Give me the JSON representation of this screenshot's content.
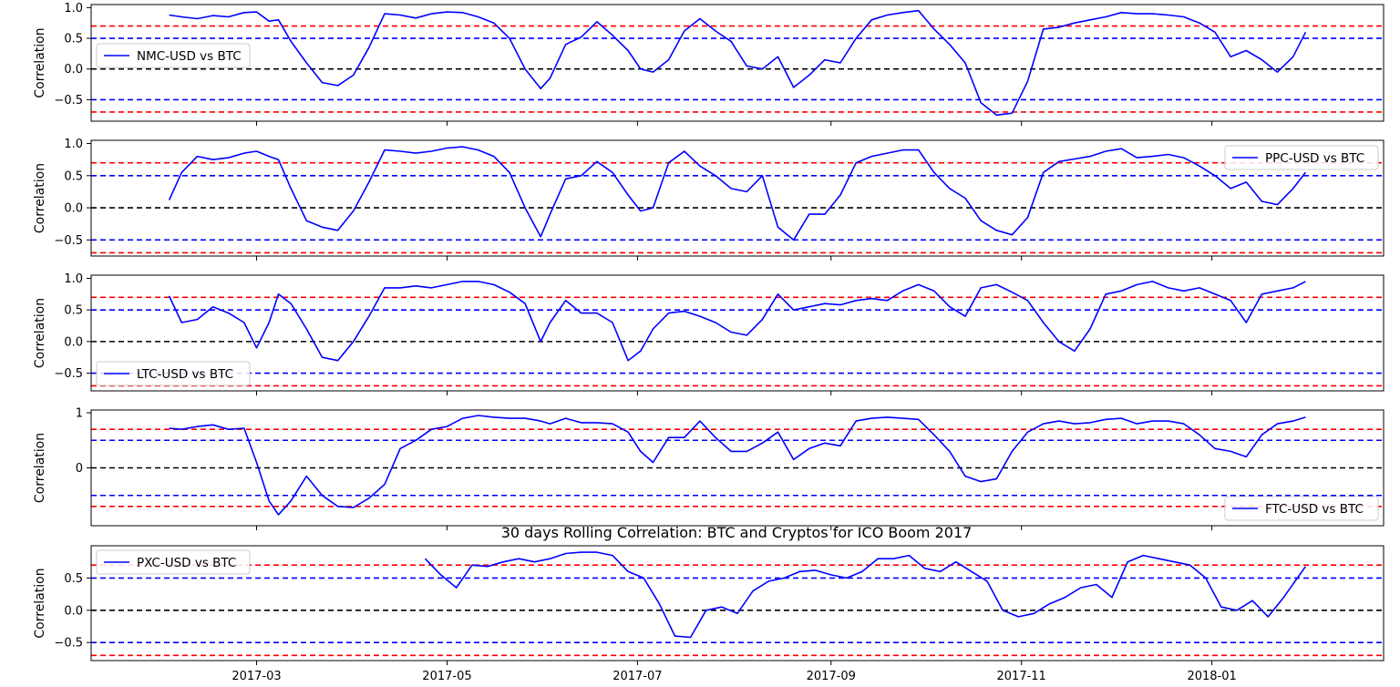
{
  "figure_title": "30 days Rolling Correlation: BTC and Cryptos for ICO Boom 2017",
  "ylabel": "Correlation",
  "x_ticks": [
    "2017-03",
    "2017-05",
    "2017-07",
    "2017-09",
    "2017-11",
    "2018-01"
  ],
  "colors": {
    "series": "#0000ff",
    "upper_strong": "#ff0000",
    "moderate": "#0000ff",
    "zero": "#000000"
  },
  "chart_data": [
    {
      "type": "line",
      "series_name": "NMC-USD vs BTC",
      "legend_position": "center-left",
      "ylim": [
        -0.85,
        1.05
      ],
      "y_ticks": [
        -0.5,
        0.0,
        0.5,
        1.0
      ],
      "y_tick_labels": [
        "−0.5",
        "0.0",
        "0.5",
        "1.0"
      ],
      "reference_lines": [
        0.7,
        0.5,
        0.0,
        -0.5,
        -0.7
      ],
      "x": [
        "2017-02-01",
        "2017-02-05",
        "2017-02-10",
        "2017-02-15",
        "2017-02-20",
        "2017-02-25",
        "2017-03-01",
        "2017-03-05",
        "2017-03-08",
        "2017-03-12",
        "2017-03-17",
        "2017-03-22",
        "2017-03-27",
        "2017-04-01",
        "2017-04-06",
        "2017-04-11",
        "2017-04-16",
        "2017-04-21",
        "2017-04-26",
        "2017-05-01",
        "2017-05-06",
        "2017-05-11",
        "2017-05-16",
        "2017-05-21",
        "2017-05-26",
        "2017-05-31",
        "2017-06-03",
        "2017-06-08",
        "2017-06-13",
        "2017-06-18",
        "2017-06-23",
        "2017-06-28",
        "2017-07-02",
        "2017-07-06",
        "2017-07-11",
        "2017-07-16",
        "2017-07-21",
        "2017-07-26",
        "2017-07-31",
        "2017-08-05",
        "2017-08-10",
        "2017-08-15",
        "2017-08-20",
        "2017-08-25",
        "2017-08-30",
        "2017-09-04",
        "2017-09-09",
        "2017-09-14",
        "2017-09-19",
        "2017-09-24",
        "2017-09-29",
        "2017-10-04",
        "2017-10-09",
        "2017-10-14",
        "2017-10-19",
        "2017-10-24",
        "2017-10-29",
        "2017-11-03",
        "2017-11-08",
        "2017-11-13",
        "2017-11-18",
        "2017-11-23",
        "2017-11-28",
        "2017-12-03",
        "2017-12-08",
        "2017-12-13",
        "2017-12-18",
        "2017-12-23",
        "2017-12-28",
        "2018-01-02",
        "2018-01-07",
        "2018-01-12",
        "2018-01-17",
        "2018-01-22",
        "2018-01-27",
        "2018-01-31"
      ],
      "values": [
        0.88,
        0.85,
        0.82,
        0.87,
        0.85,
        0.92,
        0.93,
        0.78,
        0.8,
        0.45,
        0.1,
        -0.22,
        -0.27,
        -0.1,
        0.35,
        0.9,
        0.88,
        0.83,
        0.9,
        0.93,
        0.92,
        0.85,
        0.75,
        0.5,
        0.0,
        -0.32,
        -0.15,
        0.4,
        0.52,
        0.77,
        0.55,
        0.3,
        0.0,
        -0.05,
        0.15,
        0.62,
        0.82,
        0.62,
        0.45,
        0.05,
        0.0,
        0.2,
        -0.3,
        -0.1,
        0.15,
        0.1,
        0.5,
        0.8,
        0.88,
        0.92,
        0.95,
        0.65,
        0.4,
        0.1,
        -0.55,
        -0.75,
        -0.72,
        -0.2,
        0.65,
        0.68,
        0.75,
        0.8,
        0.85,
        0.92,
        0.9,
        0.9,
        0.88,
        0.85,
        0.75,
        0.6,
        0.2,
        0.3,
        0.15,
        -0.05,
        0.2,
        0.6
      ]
    },
    {
      "type": "line",
      "series_name": "PPC-USD vs BTC",
      "legend_position": "upper-right",
      "ylim": [
        -0.75,
        1.05
      ],
      "y_ticks": [
        -0.5,
        0.0,
        0.5,
        1.0
      ],
      "y_tick_labels": [
        "−0.5",
        "0.0",
        "0.5",
        "1.0"
      ],
      "reference_lines": [
        0.7,
        0.5,
        0.0,
        -0.5,
        -0.7
      ],
      "x": [
        "2017-02-01",
        "2017-02-05",
        "2017-02-10",
        "2017-02-15",
        "2017-02-20",
        "2017-02-25",
        "2017-03-01",
        "2017-03-05",
        "2017-03-08",
        "2017-03-12",
        "2017-03-17",
        "2017-03-22",
        "2017-03-27",
        "2017-04-01",
        "2017-04-06",
        "2017-04-11",
        "2017-04-16",
        "2017-04-21",
        "2017-04-26",
        "2017-05-01",
        "2017-05-06",
        "2017-05-11",
        "2017-05-16",
        "2017-05-21",
        "2017-05-26",
        "2017-05-31",
        "2017-06-03",
        "2017-06-08",
        "2017-06-13",
        "2017-06-18",
        "2017-06-23",
        "2017-06-28",
        "2017-07-02",
        "2017-07-06",
        "2017-07-11",
        "2017-07-16",
        "2017-07-21",
        "2017-07-26",
        "2017-07-31",
        "2017-08-05",
        "2017-08-10",
        "2017-08-15",
        "2017-08-20",
        "2017-08-25",
        "2017-08-30",
        "2017-09-04",
        "2017-09-09",
        "2017-09-14",
        "2017-09-19",
        "2017-09-24",
        "2017-09-29",
        "2017-10-04",
        "2017-10-09",
        "2017-10-14",
        "2017-10-19",
        "2017-10-24",
        "2017-10-29",
        "2017-11-03",
        "2017-11-08",
        "2017-11-13",
        "2017-11-18",
        "2017-11-23",
        "2017-11-28",
        "2017-12-03",
        "2017-12-08",
        "2017-12-13",
        "2017-12-18",
        "2017-12-23",
        "2017-12-28",
        "2018-01-02",
        "2018-01-07",
        "2018-01-12",
        "2018-01-17",
        "2018-01-22",
        "2018-01-27",
        "2018-01-31"
      ],
      "values": [
        0.12,
        0.55,
        0.8,
        0.75,
        0.78,
        0.85,
        0.88,
        0.8,
        0.75,
        0.3,
        -0.2,
        -0.3,
        -0.35,
        -0.05,
        0.4,
        0.9,
        0.88,
        0.85,
        0.88,
        0.93,
        0.95,
        0.9,
        0.8,
        0.55,
        0.0,
        -0.45,
        -0.1,
        0.45,
        0.5,
        0.72,
        0.55,
        0.2,
        -0.05,
        0.0,
        0.7,
        0.88,
        0.65,
        0.5,
        0.3,
        0.25,
        0.5,
        -0.3,
        -0.5,
        -0.1,
        -0.1,
        0.2,
        0.7,
        0.8,
        0.85,
        0.9,
        0.9,
        0.55,
        0.3,
        0.15,
        -0.2,
        -0.35,
        -0.42,
        -0.15,
        0.55,
        0.72,
        0.76,
        0.8,
        0.88,
        0.92,
        0.78,
        0.8,
        0.83,
        0.78,
        0.65,
        0.5,
        0.3,
        0.4,
        0.1,
        0.05,
        0.3,
        0.55
      ]
    },
    {
      "type": "line",
      "series_name": "LTC-USD vs BTC",
      "legend_position": "lower-left",
      "ylim": [
        -0.78,
        1.05
      ],
      "y_ticks": [
        -0.5,
        0.0,
        0.5,
        1.0
      ],
      "y_tick_labels": [
        "−0.5",
        "0.0",
        "0.5",
        "1.0"
      ],
      "reference_lines": [
        0.7,
        0.5,
        0.0,
        -0.5,
        -0.7
      ],
      "x": [
        "2017-02-01",
        "2017-02-05",
        "2017-02-10",
        "2017-02-15",
        "2017-02-20",
        "2017-02-25",
        "2017-03-01",
        "2017-03-05",
        "2017-03-08",
        "2017-03-12",
        "2017-03-17",
        "2017-03-22",
        "2017-03-27",
        "2017-04-01",
        "2017-04-06",
        "2017-04-11",
        "2017-04-16",
        "2017-04-21",
        "2017-04-26",
        "2017-05-01",
        "2017-05-06",
        "2017-05-11",
        "2017-05-16",
        "2017-05-21",
        "2017-05-26",
        "2017-05-31",
        "2017-06-03",
        "2017-06-08",
        "2017-06-13",
        "2017-06-18",
        "2017-06-23",
        "2017-06-28",
        "2017-07-02",
        "2017-07-06",
        "2017-07-11",
        "2017-07-16",
        "2017-07-21",
        "2017-07-26",
        "2017-07-31",
        "2017-08-05",
        "2017-08-10",
        "2017-08-15",
        "2017-08-20",
        "2017-08-25",
        "2017-08-30",
        "2017-09-04",
        "2017-09-09",
        "2017-09-14",
        "2017-09-19",
        "2017-09-24",
        "2017-09-29",
        "2017-10-04",
        "2017-10-09",
        "2017-10-14",
        "2017-10-19",
        "2017-10-24",
        "2017-10-29",
        "2017-11-03",
        "2017-11-08",
        "2017-11-13",
        "2017-11-18",
        "2017-11-23",
        "2017-11-28",
        "2017-12-03",
        "2017-12-08",
        "2017-12-13",
        "2017-12-18",
        "2017-12-23",
        "2017-12-28",
        "2018-01-02",
        "2018-01-07",
        "2018-01-12",
        "2018-01-17",
        "2018-01-22",
        "2018-01-27",
        "2018-01-31"
      ],
      "values": [
        0.72,
        0.3,
        0.35,
        0.55,
        0.45,
        0.3,
        -0.1,
        0.3,
        0.75,
        0.6,
        0.2,
        -0.25,
        -0.3,
        0.0,
        0.4,
        0.85,
        0.85,
        0.88,
        0.85,
        0.9,
        0.95,
        0.95,
        0.9,
        0.78,
        0.6,
        0.0,
        0.3,
        0.65,
        0.45,
        0.45,
        0.3,
        -0.3,
        -0.15,
        0.2,
        0.45,
        0.48,
        0.4,
        0.3,
        0.15,
        0.1,
        0.35,
        0.75,
        0.5,
        0.55,
        0.6,
        0.58,
        0.65,
        0.68,
        0.65,
        0.8,
        0.9,
        0.8,
        0.55,
        0.4,
        0.85,
        0.9,
        0.78,
        0.65,
        0.3,
        0.0,
        -0.15,
        0.2,
        0.75,
        0.8,
        0.9,
        0.95,
        0.85,
        0.8,
        0.85,
        0.75,
        0.65,
        0.3,
        0.75,
        0.8,
        0.85,
        0.95
      ]
    },
    {
      "type": "line",
      "series_name": "FTC-USD vs BTC",
      "legend_position": "lower-right",
      "ylim": [
        -1.05,
        1.05
      ],
      "y_ticks": [
        0,
        1
      ],
      "y_tick_labels": [
        "0",
        "1"
      ],
      "reference_lines": [
        0.7,
        0.5,
        0.0,
        -0.5,
        -0.7
      ],
      "x": [
        "2017-02-01",
        "2017-02-05",
        "2017-02-10",
        "2017-02-15",
        "2017-02-20",
        "2017-02-25",
        "2017-03-01",
        "2017-03-05",
        "2017-03-08",
        "2017-03-12",
        "2017-03-17",
        "2017-03-22",
        "2017-03-27",
        "2017-04-01",
        "2017-04-06",
        "2017-04-11",
        "2017-04-16",
        "2017-04-21",
        "2017-04-26",
        "2017-05-01",
        "2017-05-06",
        "2017-05-11",
        "2017-05-16",
        "2017-05-21",
        "2017-05-26",
        "2017-05-31",
        "2017-06-03",
        "2017-06-08",
        "2017-06-13",
        "2017-06-18",
        "2017-06-23",
        "2017-06-28",
        "2017-07-02",
        "2017-07-06",
        "2017-07-11",
        "2017-07-16",
        "2017-07-21",
        "2017-07-26",
        "2017-07-31",
        "2017-08-05",
        "2017-08-10",
        "2017-08-15",
        "2017-08-20",
        "2017-08-25",
        "2017-08-30",
        "2017-09-04",
        "2017-09-09",
        "2017-09-14",
        "2017-09-19",
        "2017-09-24",
        "2017-09-29",
        "2017-10-04",
        "2017-10-09",
        "2017-10-14",
        "2017-10-19",
        "2017-10-24",
        "2017-10-29",
        "2017-11-03",
        "2017-11-08",
        "2017-11-13",
        "2017-11-18",
        "2017-11-23",
        "2017-11-28",
        "2017-12-03",
        "2017-12-08",
        "2017-12-13",
        "2017-12-18",
        "2017-12-23",
        "2017-12-28",
        "2018-01-02",
        "2018-01-07",
        "2018-01-12",
        "2018-01-17",
        "2018-01-22",
        "2018-01-27",
        "2018-01-31"
      ],
      "values": [
        0.72,
        0.7,
        0.75,
        0.78,
        0.7,
        0.72,
        0.1,
        -0.6,
        -0.85,
        -0.6,
        -0.15,
        -0.5,
        -0.7,
        -0.72,
        -0.55,
        -0.3,
        0.35,
        0.5,
        0.7,
        0.75,
        0.9,
        0.95,
        0.92,
        0.9,
        0.9,
        0.85,
        0.8,
        0.9,
        0.82,
        0.82,
        0.8,
        0.65,
        0.3,
        0.1,
        0.55,
        0.55,
        0.85,
        0.55,
        0.3,
        0.3,
        0.45,
        0.65,
        0.15,
        0.35,
        0.45,
        0.4,
        0.85,
        0.9,
        0.92,
        0.9,
        0.88,
        0.6,
        0.3,
        -0.15,
        -0.25,
        -0.2,
        0.3,
        0.65,
        0.8,
        0.85,
        0.8,
        0.82,
        0.88,
        0.9,
        0.8,
        0.85,
        0.85,
        0.8,
        0.6,
        0.35,
        0.3,
        0.2,
        0.6,
        0.8,
        0.85,
        0.92
      ]
    },
    {
      "type": "line",
      "series_name": "PXC-USD vs BTC",
      "legend_position": "upper-left",
      "ylim": [
        -0.78,
        1.0
      ],
      "y_ticks": [
        -0.5,
        0.0,
        0.5
      ],
      "y_tick_labels": [
        "−0.5",
        "0.0",
        "0.5"
      ],
      "reference_lines": [
        0.7,
        0.5,
        0.0,
        -0.5,
        -0.7
      ],
      "x": [
        "2017-04-24",
        "2017-04-29",
        "2017-05-04",
        "2017-05-09",
        "2017-05-14",
        "2017-05-19",
        "2017-05-24",
        "2017-05-29",
        "2017-06-03",
        "2017-06-08",
        "2017-06-13",
        "2017-06-18",
        "2017-06-23",
        "2017-06-28",
        "2017-07-03",
        "2017-07-08",
        "2017-07-13",
        "2017-07-18",
        "2017-07-23",
        "2017-07-28",
        "2017-08-02",
        "2017-08-07",
        "2017-08-12",
        "2017-08-17",
        "2017-08-22",
        "2017-08-27",
        "2017-09-01",
        "2017-09-06",
        "2017-09-11",
        "2017-09-16",
        "2017-09-21",
        "2017-09-26",
        "2017-10-01",
        "2017-10-06",
        "2017-10-11",
        "2017-10-16",
        "2017-10-21",
        "2017-10-26",
        "2017-10-31",
        "2017-11-05",
        "2017-11-10",
        "2017-11-15",
        "2017-11-20",
        "2017-11-25",
        "2017-11-30",
        "2017-12-05",
        "2017-12-10",
        "2017-12-15",
        "2017-12-20",
        "2017-12-25",
        "2017-12-30",
        "2018-01-04",
        "2018-01-09",
        "2018-01-14",
        "2018-01-19",
        "2018-01-24",
        "2018-01-31"
      ],
      "values": [
        0.8,
        0.55,
        0.35,
        0.7,
        0.68,
        0.75,
        0.8,
        0.75,
        0.8,
        0.88,
        0.9,
        0.9,
        0.85,
        0.6,
        0.5,
        0.1,
        -0.4,
        -0.42,
        0.0,
        0.05,
        -0.05,
        0.3,
        0.45,
        0.5,
        0.6,
        0.62,
        0.55,
        0.5,
        0.6,
        0.8,
        0.8,
        0.85,
        0.65,
        0.6,
        0.75,
        0.6,
        0.45,
        0.0,
        -0.1,
        -0.05,
        0.1,
        0.2,
        0.35,
        0.4,
        0.2,
        0.75,
        0.85,
        0.8,
        0.75,
        0.7,
        0.5,
        0.05,
        0.0,
        0.15,
        -0.1,
        0.2,
        0.68
      ]
    }
  ]
}
